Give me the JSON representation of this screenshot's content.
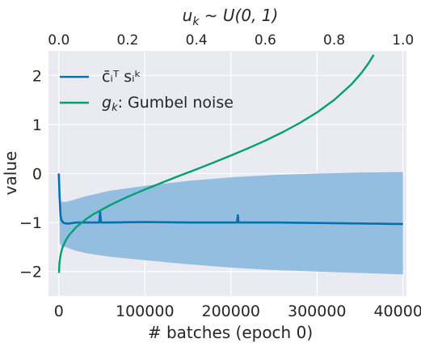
{
  "chart_data": {
    "type": "line",
    "title": "u_k ~ U(0, 1)",
    "title_parts": {
      "u": "u",
      "k": "k",
      "tilde": " ∼ ",
      "rest": "U(0, 1)"
    },
    "xlabel": "# batches (epoch 0)",
    "ylabel": "value",
    "xlim": [
      -12000,
      404000
    ],
    "ylim": [
      -2.5,
      2.5
    ],
    "x_ticks": [
      0,
      100000,
      200000,
      300000,
      400000
    ],
    "x_tick_labels": [
      "0",
      "100000",
      "200000",
      "300000",
      "400000"
    ],
    "y_ticks": [
      2,
      1,
      0,
      -1,
      -2
    ],
    "y_tick_labels": [
      "2",
      "1",
      "0",
      "−1",
      "−2"
    ],
    "top_axis": {
      "label": "u_k ~ U(0, 1)",
      "ticks": [
        0.0,
        0.2,
        0.4,
        0.6,
        0.8,
        1.0
      ],
      "tick_labels": [
        "0.0",
        "0.2",
        "0.4",
        "0.6",
        "0.8",
        "1.0"
      ]
    },
    "grid": true,
    "legend_position": "top-left",
    "series": [
      {
        "name": "c̄ᵢᵀ sᵢᵏ",
        "color": "#0072b2",
        "band_color": "#8fbcdd",
        "mean": {
          "x": [
            0,
            1000,
            2000,
            3000,
            5000,
            8000,
            12000,
            20000,
            40000,
            47000,
            48000,
            49000,
            60000,
            100000,
            150000,
            200000,
            207000,
            208000,
            209000,
            250000,
            300000,
            350000,
            400000
          ],
          "y": [
            0.0,
            -0.5,
            -0.85,
            -0.95,
            -1.0,
            -1.02,
            -1.02,
            -1.0,
            -1.0,
            -1.0,
            -0.78,
            -1.0,
            -1.0,
            -0.99,
            -1.0,
            -1.0,
            -1.0,
            -0.85,
            -1.0,
            -1.0,
            -1.01,
            -1.02,
            -1.03
          ]
        },
        "band_upper": {
          "x": [
            0,
            1000,
            3000,
            8000,
            15000,
            30000,
            60000,
            100000,
            150000,
            200000,
            250000,
            300000,
            350000,
            400000
          ],
          "y": [
            0.0,
            -0.4,
            -0.58,
            -0.58,
            -0.55,
            -0.47,
            -0.35,
            -0.25,
            -0.15,
            -0.08,
            -0.03,
            0.0,
            0.02,
            0.03
          ]
        },
        "band_lower": {
          "x": [
            0,
            1000,
            3000,
            8000,
            15000,
            30000,
            60000,
            100000,
            150000,
            200000,
            250000,
            300000,
            350000,
            400000
          ],
          "y": [
            0.0,
            -1.4,
            -1.48,
            -1.5,
            -1.55,
            -1.62,
            -1.7,
            -1.77,
            -1.85,
            -1.92,
            -1.97,
            -2.0,
            -2.03,
            -2.06
          ]
        }
      },
      {
        "name": ": Gumbel noise",
        "name_symbol": "g",
        "name_subscript": "k",
        "color": "#009e73",
        "formula": "-log(-log(u_k))",
        "u": [
          0.0005,
          0.002,
          0.005,
          0.01,
          0.02,
          0.03,
          0.05,
          0.08,
          0.1,
          0.15,
          0.2,
          0.25,
          0.3,
          0.35,
          0.4,
          0.45,
          0.5,
          0.55,
          0.6,
          0.65,
          0.7,
          0.75,
          0.8,
          0.85,
          0.88,
          0.9,
          0.915
        ]
      }
    ]
  }
}
